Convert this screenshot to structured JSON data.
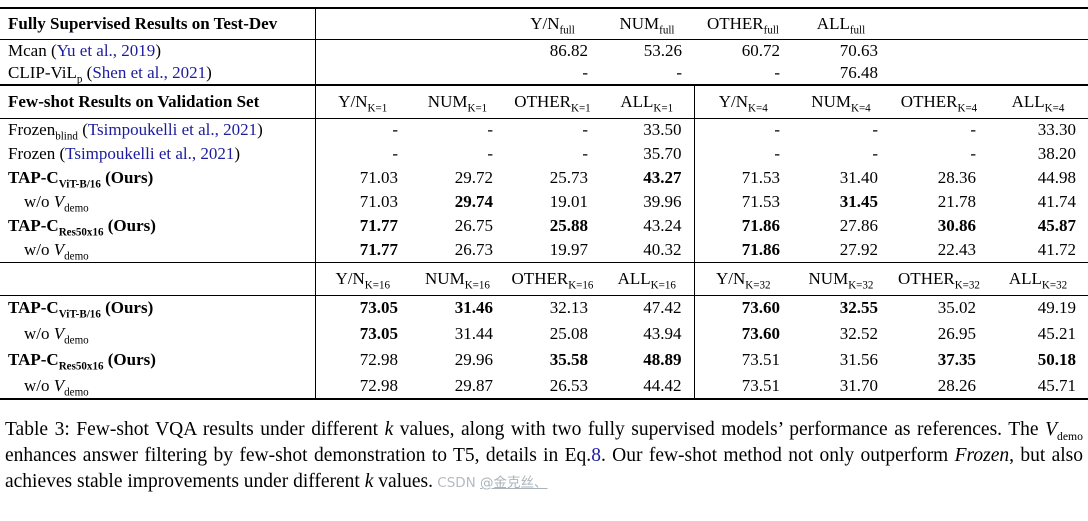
{
  "colors": {
    "citation_blue": "#1c1c9c",
    "text": "#000000",
    "watermark_gray": "#b3bbc1"
  },
  "table": {
    "section1": {
      "title": "Fully Supervised Results on Test-Dev",
      "columns": [
        {
          "base": "Y/N",
          "sub": "full"
        },
        {
          "base": "NUM",
          "sub": "full"
        },
        {
          "base": "OTHER",
          "sub": "full"
        },
        {
          "base": "ALL",
          "sub": "full"
        }
      ],
      "rows": [
        {
          "label": [
            {
              "t": "Mcan ("
            },
            {
              "t": "Yu et al., 2019",
              "cite": true
            },
            {
              "t": ")"
            }
          ],
          "values": [
            "86.82",
            "53.26",
            "60.72",
            "70.63"
          ],
          "bold": [
            0,
            0,
            0,
            0
          ]
        },
        {
          "label": [
            {
              "t": "CLIP-ViL"
            },
            {
              "t": "p",
              "sub": true
            },
            {
              "t": " ("
            },
            {
              "t": "Shen et al., 2021",
              "cite": true
            },
            {
              "t": ")"
            }
          ],
          "values": [
            "-",
            "-",
            "-",
            "76.48"
          ],
          "bold": [
            0,
            0,
            0,
            0
          ]
        }
      ]
    },
    "section2": {
      "title": "Few-shot Results on Validation Set",
      "columns": [
        {
          "base": "Y/N",
          "sub": "K=1"
        },
        {
          "base": "NUM",
          "sub": "K=1"
        },
        {
          "base": "OTHER",
          "sub": "K=1"
        },
        {
          "base": "ALL",
          "sub": "K=1"
        },
        {
          "base": "Y/N",
          "sub": "K=4"
        },
        {
          "base": "NUM",
          "sub": "K=4"
        },
        {
          "base": "OTHER",
          "sub": "K=4"
        },
        {
          "base": "ALL",
          "sub": "K=4"
        }
      ],
      "rows": [
        {
          "label": [
            {
              "t": "Frozen"
            },
            {
              "t": "blind",
              "sub": true
            },
            {
              "t": " ("
            },
            {
              "t": "Tsimpoukelli et al., 2021",
              "cite": true
            },
            {
              "t": ")"
            }
          ],
          "values": [
            "-",
            "-",
            "-",
            "33.50",
            "-",
            "-",
            "-",
            "33.30"
          ],
          "bold": [
            0,
            0,
            0,
            0,
            0,
            0,
            0,
            0
          ]
        },
        {
          "label": [
            {
              "t": "Frozen ("
            },
            {
              "t": "Tsimpoukelli et al., 2021",
              "cite": true
            },
            {
              "t": ")"
            }
          ],
          "values": [
            "-",
            "-",
            "-",
            "35.70",
            "-",
            "-",
            "-",
            "38.20"
          ],
          "bold": [
            0,
            0,
            0,
            0,
            0,
            0,
            0,
            0
          ]
        },
        {
          "labelBold": true,
          "label": [
            {
              "t": "TAP-C"
            },
            {
              "t": "ViT-B/16",
              "sub": true
            },
            {
              "t": " (Ours)"
            }
          ],
          "values": [
            "71.03",
            "29.72",
            "25.73",
            "43.27",
            "71.53",
            "31.40",
            "28.36",
            "44.98"
          ],
          "bold": [
            0,
            0,
            0,
            1,
            0,
            0,
            0,
            0
          ]
        },
        {
          "indent": true,
          "label": [
            {
              "t": "w/o "
            },
            {
              "t": "V",
              "i": true
            },
            {
              "t": "demo",
              "sub": true
            }
          ],
          "values": [
            "71.03",
            "29.74",
            "19.01",
            "39.96",
            "71.53",
            "31.45",
            "21.78",
            "41.74"
          ],
          "bold": [
            0,
            1,
            0,
            0,
            0,
            1,
            0,
            0
          ]
        },
        {
          "labelBold": true,
          "label": [
            {
              "t": "TAP-C"
            },
            {
              "t": "Res50x16",
              "sub": true
            },
            {
              "t": " (Ours)"
            }
          ],
          "values": [
            "71.77",
            "26.75",
            "25.88",
            "43.24",
            "71.86",
            "27.86",
            "30.86",
            "45.87"
          ],
          "bold": [
            1,
            0,
            1,
            0,
            1,
            0,
            1,
            1
          ]
        },
        {
          "indent": true,
          "label": [
            {
              "t": "w/o "
            },
            {
              "t": "V",
              "i": true
            },
            {
              "t": "demo",
              "sub": true
            }
          ],
          "values": [
            "71.77",
            "26.73",
            "19.97",
            "40.32",
            "71.86",
            "27.92",
            "22.43",
            "41.72"
          ],
          "bold": [
            1,
            0,
            0,
            0,
            1,
            0,
            0,
            0
          ]
        }
      ]
    },
    "section3": {
      "title": "",
      "columns": [
        {
          "base": "Y/N",
          "sub": "K=16"
        },
        {
          "base": "NUM",
          "sub": "K=16"
        },
        {
          "base": "OTHER",
          "sub": "K=16"
        },
        {
          "base": "ALL",
          "sub": "K=16"
        },
        {
          "base": "Y/N",
          "sub": "K=32"
        },
        {
          "base": "NUM",
          "sub": "K=32"
        },
        {
          "base": "OTHER",
          "sub": "K=32"
        },
        {
          "base": "ALL",
          "sub": "K=32"
        }
      ],
      "rows": [
        {
          "labelBold": true,
          "label": [
            {
              "t": "TAP-C"
            },
            {
              "t": "ViT-B/16",
              "sub": true
            },
            {
              "t": " (Ours)"
            }
          ],
          "values": [
            "73.05",
            "31.46",
            "32.13",
            "47.42",
            "73.60",
            "32.55",
            "35.02",
            "49.19"
          ],
          "bold": [
            1,
            1,
            0,
            0,
            1,
            1,
            0,
            0
          ]
        },
        {
          "indent": true,
          "label": [
            {
              "t": "w/o "
            },
            {
              "t": "V",
              "i": true
            },
            {
              "t": "demo",
              "sub": true
            }
          ],
          "values": [
            "73.05",
            "31.44",
            "25.08",
            "43.94",
            "73.60",
            "32.52",
            "26.95",
            "45.21"
          ],
          "bold": [
            1,
            0,
            0,
            0,
            1,
            0,
            0,
            0
          ]
        },
        {
          "labelBold": true,
          "label": [
            {
              "t": "TAP-C"
            },
            {
              "t": "Res50x16",
              "sub": true
            },
            {
              "t": " (Ours)"
            }
          ],
          "values": [
            "72.98",
            "29.96",
            "35.58",
            "48.89",
            "73.51",
            "31.56",
            "37.35",
            "50.18"
          ],
          "bold": [
            0,
            0,
            1,
            1,
            0,
            0,
            1,
            1
          ]
        },
        {
          "indent": true,
          "label": [
            {
              "t": "w/o "
            },
            {
              "t": "V",
              "i": true
            },
            {
              "t": "demo",
              "sub": true
            }
          ],
          "values": [
            "72.98",
            "29.87",
            "26.53",
            "44.42",
            "73.51",
            "31.70",
            "28.26",
            "45.71"
          ],
          "bold": [
            0,
            0,
            0,
            0,
            0,
            0,
            0,
            0
          ]
        }
      ]
    }
  },
  "caption": {
    "parts": [
      {
        "t": "Table 3: Few-shot VQA results under different "
      },
      {
        "t": "k",
        "i": true
      },
      {
        "t": " values, along with two fully supervised models’ performance as references.  The "
      },
      {
        "t": "V",
        "i": true
      },
      {
        "t": "demo",
        "sub": true
      },
      {
        "t": " enhances answer filtering by few-shot demonstration to T5, details in Eq."
      },
      {
        "t": "8",
        "cite": true
      },
      {
        "t": ".  Our few-shot method not only outperform "
      },
      {
        "t": "Frozen",
        "i": true
      },
      {
        "t": ", but also achieves stable improvements under different "
      },
      {
        "t": "k",
        "i": true
      },
      {
        "t": " values."
      }
    ]
  },
  "watermark": {
    "prefix": "CSDN ",
    "handle": "@金克丝、"
  }
}
